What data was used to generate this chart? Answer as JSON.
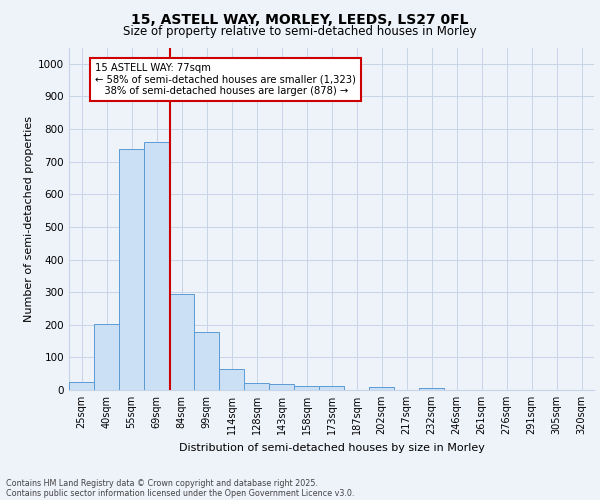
{
  "title_line1": "15, ASTELL WAY, MORLEY, LEEDS, LS27 0FL",
  "title_line2": "Size of property relative to semi-detached houses in Morley",
  "xlabel": "Distribution of semi-detached houses by size in Morley",
  "ylabel": "Number of semi-detached properties",
  "categories": [
    "25sqm",
    "40sqm",
    "55sqm",
    "69sqm",
    "84sqm",
    "99sqm",
    "114sqm",
    "128sqm",
    "143sqm",
    "158sqm",
    "173sqm",
    "187sqm",
    "202sqm",
    "217sqm",
    "232sqm",
    "246sqm",
    "261sqm",
    "276sqm",
    "291sqm",
    "305sqm",
    "320sqm"
  ],
  "values": [
    25,
    202,
    738,
    760,
    293,
    177,
    65,
    20,
    17,
    12,
    12,
    0,
    10,
    0,
    7,
    0,
    0,
    0,
    0,
    0,
    0
  ],
  "bar_color": "#cce0f5",
  "bar_edge_color": "#5b9bd5",
  "grid_color": "#c8d4e8",
  "vline_color": "#cc0000",
  "annotation_box_color": "#cc0000",
  "ylim": [
    0,
    1050
  ],
  "yticks": [
    0,
    100,
    200,
    300,
    400,
    500,
    600,
    700,
    800,
    900,
    1000
  ],
  "pct_smaller": 58,
  "count_smaller": 1323,
  "pct_larger": 38,
  "count_larger": 878,
  "footer_line1": "Contains HM Land Registry data © Crown copyright and database right 2025.",
  "footer_line2": "Contains public sector information licensed under the Open Government Licence v3.0.",
  "bg_color": "#eef2f9"
}
